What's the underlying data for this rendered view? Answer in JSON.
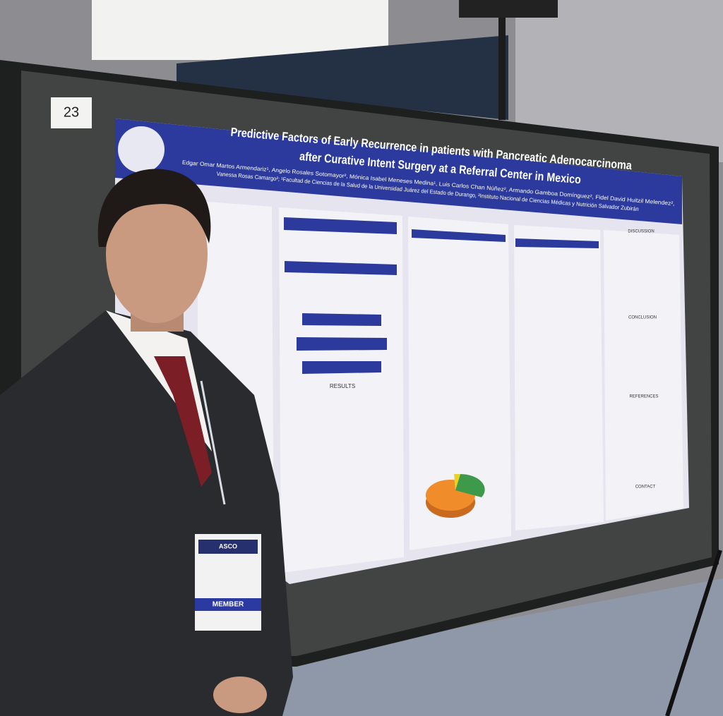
{
  "board_number": "23",
  "poster": {
    "title": [
      "Predictive Factors of Early Recurrence in patients with Pancreatic Adenocarcinoma",
      "after Curative Intent Surgery at a Referral Center in Mexico"
    ],
    "authors": [
      "Edgar Omar Martos Armendariz¹, Angelo Rosales Sotomayor², Mónica Isabel Meneses Medina¹, Luis Carlos Chan Núñez², Armando Gamboa Domínguez², Fidel David Huitzil Melendez²,",
      "Vanessa Rosas Camargo²; ¹Facultad de Ciencias de la Salud de la Universidad Juárez del Estado de Durango, ²Instituto Nacional de Ciencias Médicas y Nutrición Salvador Zubirán"
    ],
    "headings": [
      "RESULTS",
      "DISCUSSION",
      "CONCLUSION",
      "REFERENCES",
      "CONTACT"
    ]
  },
  "badge": {
    "org": "ASCO",
    "status": "MEMBER"
  }
}
